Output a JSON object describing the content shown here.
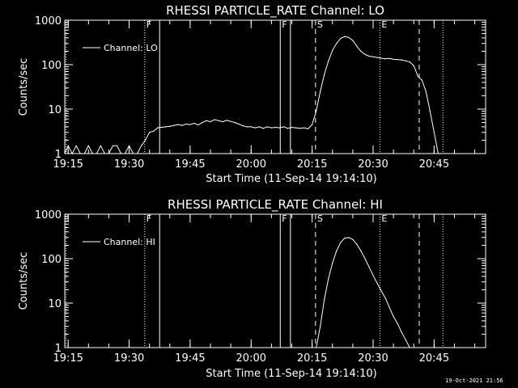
{
  "footer_date": "19-Oct-2021 21:56",
  "chart_data": [
    {
      "type": "line",
      "title": "RHESSI PARTICLE_RATE Channel: LO",
      "xlabel": "Start Time (11-Sep-14 19:14:10)",
      "ylabel": "Counts/sec",
      "yscale": "log",
      "xlim": [
        "19:14:10",
        "20:57:40"
      ],
      "ylim": [
        1,
        1000
      ],
      "x_ticks": [
        "19:15",
        "19:30",
        "19:45",
        "20:00",
        "20:15",
        "20:30",
        "20:45"
      ],
      "y_ticks": [
        "1",
        "10",
        "100",
        "1000"
      ],
      "legend": {
        "position": "top-left",
        "entries": [
          "Channel: LO"
        ]
      },
      "markers": {
        "solid": [
          "19:37:30",
          "20:07:10",
          "20:09:40"
        ],
        "dashed": [
          "20:15:50",
          "20:41:20"
        ],
        "dotted": [
          "19:14:30",
          "19:33:50",
          "20:31:40",
          "20:47:10"
        ],
        "labels": [
          {
            "text": "F",
            "at": "19:33:50"
          },
          {
            "text": "F",
            "at": "20:07:10"
          },
          {
            "text": "S",
            "at": "20:15:50"
          },
          {
            "text": "E",
            "at": "20:31:40"
          }
        ]
      },
      "series": [
        {
          "name": "Channel: LO",
          "x": [
            "19:14:10",
            "19:15",
            "19:16",
            "19:17",
            "19:18",
            "19:19",
            "19:20",
            "19:21",
            "19:22",
            "19:23",
            "19:24",
            "19:25",
            "19:26",
            "19:27",
            "19:28",
            "19:29",
            "19:30",
            "19:31",
            "19:32",
            "19:33",
            "19:34",
            "19:35",
            "19:36",
            "19:37",
            "19:38",
            "19:39",
            "19:40",
            "19:41",
            "19:42",
            "19:43",
            "19:44",
            "19:45",
            "19:46",
            "19:47",
            "19:48",
            "19:49",
            "19:50",
            "19:51",
            "19:52",
            "19:53",
            "19:54",
            "19:55",
            "19:56",
            "19:57",
            "19:58",
            "19:59",
            "20:00",
            "20:01",
            "20:02",
            "20:03",
            "20:04",
            "20:05",
            "20:06",
            "20:07",
            "20:08",
            "20:09",
            "20:10",
            "20:11",
            "20:12",
            "20:13",
            "20:14",
            "20:15",
            "20:16",
            "20:17",
            "20:18",
            "20:19",
            "20:20",
            "20:21",
            "20:22",
            "20:23",
            "20:24",
            "20:25",
            "20:26",
            "20:27",
            "20:28",
            "20:29",
            "20:30",
            "20:31",
            "20:32",
            "20:33",
            "20:34",
            "20:35",
            "20:36",
            "20:37",
            "20:38",
            "20:39",
            "20:40",
            "20:41",
            "20:42",
            "20:43",
            "20:44",
            "20:45",
            "20:46",
            "20:47",
            "20:48"
          ],
          "values": [
            1,
            1.5,
            1,
            1.5,
            1,
            1,
            1.5,
            1,
            1,
            1.5,
            1,
            1,
            1.5,
            1.5,
            1,
            1,
            1.5,
            1,
            1,
            1.5,
            2,
            3,
            3.2,
            3.8,
            3.9,
            4,
            4.1,
            4.3,
            4.5,
            4.3,
            4.6,
            4.5,
            4.8,
            4.4,
            5,
            5.5,
            5.2,
            5.8,
            5.5,
            5.2,
            5.6,
            5.3,
            5,
            4.6,
            4.2,
            4,
            4,
            3.8,
            4,
            3.7,
            4,
            3.8,
            3.9,
            3.8,
            4,
            3.7,
            3.9,
            3.8,
            3.7,
            3.8,
            3.6,
            4.5,
            9,
            25,
            60,
            120,
            210,
            300,
            390,
            430,
            410,
            350,
            260,
            200,
            170,
            155,
            150,
            145,
            140,
            135,
            138,
            132,
            130,
            128,
            122,
            115,
            95,
            55,
            45,
            25,
            9,
            3,
            1,
            1,
            1
          ]
        }
      ]
    },
    {
      "type": "line",
      "title": "RHESSI PARTICLE_RATE Channel: HI",
      "xlabel": "Start Time (11-Sep-14 19:14:10)",
      "ylabel": "Counts/sec",
      "yscale": "log",
      "xlim": [
        "19:14:10",
        "20:57:40"
      ],
      "ylim": [
        1,
        1000
      ],
      "x_ticks": [
        "19:15",
        "19:30",
        "19:45",
        "20:00",
        "20:15",
        "20:30",
        "20:45"
      ],
      "y_ticks": [
        "1",
        "10",
        "100",
        "1000"
      ],
      "legend": {
        "position": "top-left",
        "entries": [
          "Channel: HI"
        ]
      },
      "markers": {
        "solid": [
          "19:37:30",
          "20:07:10",
          "20:09:40"
        ],
        "dashed": [
          "20:15:50",
          "20:41:20"
        ],
        "dotted": [
          "19:14:30",
          "19:33:50",
          "20:31:40",
          "20:47:10"
        ],
        "labels": [
          {
            "text": "F",
            "at": "19:33:50"
          },
          {
            "text": "F",
            "at": "20:07:10"
          },
          {
            "text": "S",
            "at": "20:15:50"
          },
          {
            "text": "E",
            "at": "20:31:40"
          }
        ]
      },
      "series": [
        {
          "name": "Channel: HI",
          "x": [
            "20:16",
            "20:17",
            "20:18",
            "20:19",
            "20:20",
            "20:21",
            "20:22",
            "20:23",
            "20:24",
            "20:25",
            "20:26",
            "20:27",
            "20:28",
            "20:29",
            "20:30",
            "20:31",
            "20:32",
            "20:33",
            "20:34",
            "20:35",
            "20:36",
            "20:37",
            "20:38",
            "20:39"
          ],
          "values": [
            1,
            3,
            12,
            35,
            80,
            150,
            230,
            290,
            300,
            270,
            210,
            150,
            100,
            65,
            42,
            28,
            19,
            13,
            8,
            5,
            3.5,
            2.2,
            1.5,
            1
          ]
        }
      ]
    }
  ]
}
